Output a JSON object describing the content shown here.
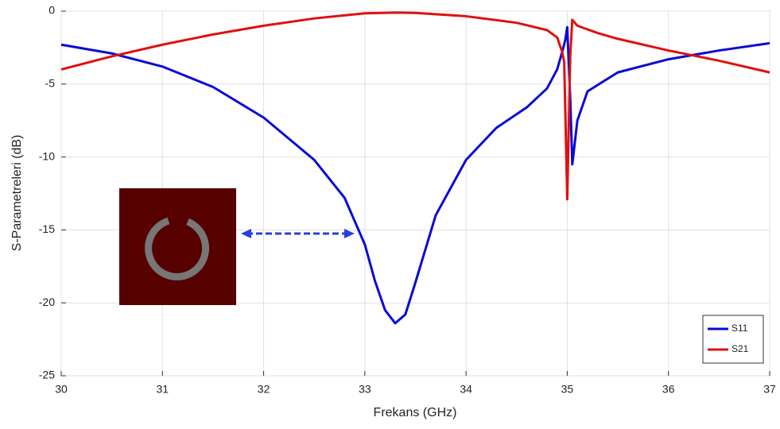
{
  "chart_data": {
    "type": "line",
    "xlabel": "Frekans (GHz)",
    "ylabel": "S-Parametreleri (dB)",
    "xlim": [
      30,
      37
    ],
    "ylim": [
      -25,
      0
    ],
    "xticks": [
      30,
      31,
      32,
      33,
      34,
      35,
      36,
      37
    ],
    "yticks": [
      -25,
      -20,
      -15,
      -10,
      -5,
      0
    ],
    "grid": true,
    "legend": "lower right",
    "series": [
      {
        "name": "S11",
        "color": "#0a0ad6",
        "x": [
          30,
          30.5,
          31,
          31.5,
          32,
          32.5,
          32.8,
          33,
          33.1,
          33.2,
          33.3,
          33.4,
          33.5,
          33.7,
          34,
          34.3,
          34.6,
          34.8,
          34.9,
          34.95,
          34.98,
          35.0,
          35.03,
          35.05,
          35.1,
          35.2,
          35.5,
          36,
          36.5,
          37
        ],
        "values": [
          -2.3,
          -2.9,
          -3.8,
          -5.2,
          -7.3,
          -10.2,
          -12.8,
          -16.0,
          -18.5,
          -20.5,
          -21.4,
          -20.8,
          -18.6,
          -14.0,
          -10.2,
          -8.0,
          -6.6,
          -5.3,
          -4.0,
          -2.8,
          -2.0,
          -1.1,
          -6.0,
          -10.5,
          -7.5,
          -5.5,
          -4.2,
          -3.3,
          -2.7,
          -2.2
        ]
      },
      {
        "name": "S21",
        "color": "#e01010",
        "x": [
          30,
          30.5,
          31,
          31.5,
          32,
          32.5,
          33,
          33.3,
          33.5,
          34,
          34.5,
          34.8,
          34.9,
          34.95,
          34.97,
          35.0,
          35.03,
          35.05,
          35.1,
          35.3,
          35.5,
          36,
          36.5,
          37
        ],
        "values": [
          -4.0,
          -3.1,
          -2.3,
          -1.6,
          -1.0,
          -0.5,
          -0.15,
          -0.1,
          -0.12,
          -0.35,
          -0.8,
          -1.3,
          -1.8,
          -2.8,
          -3.5,
          -12.9,
          -3.0,
          -0.6,
          -1.0,
          -1.5,
          -1.9,
          -2.7,
          -3.4,
          -4.2
        ]
      }
    ]
  }
}
